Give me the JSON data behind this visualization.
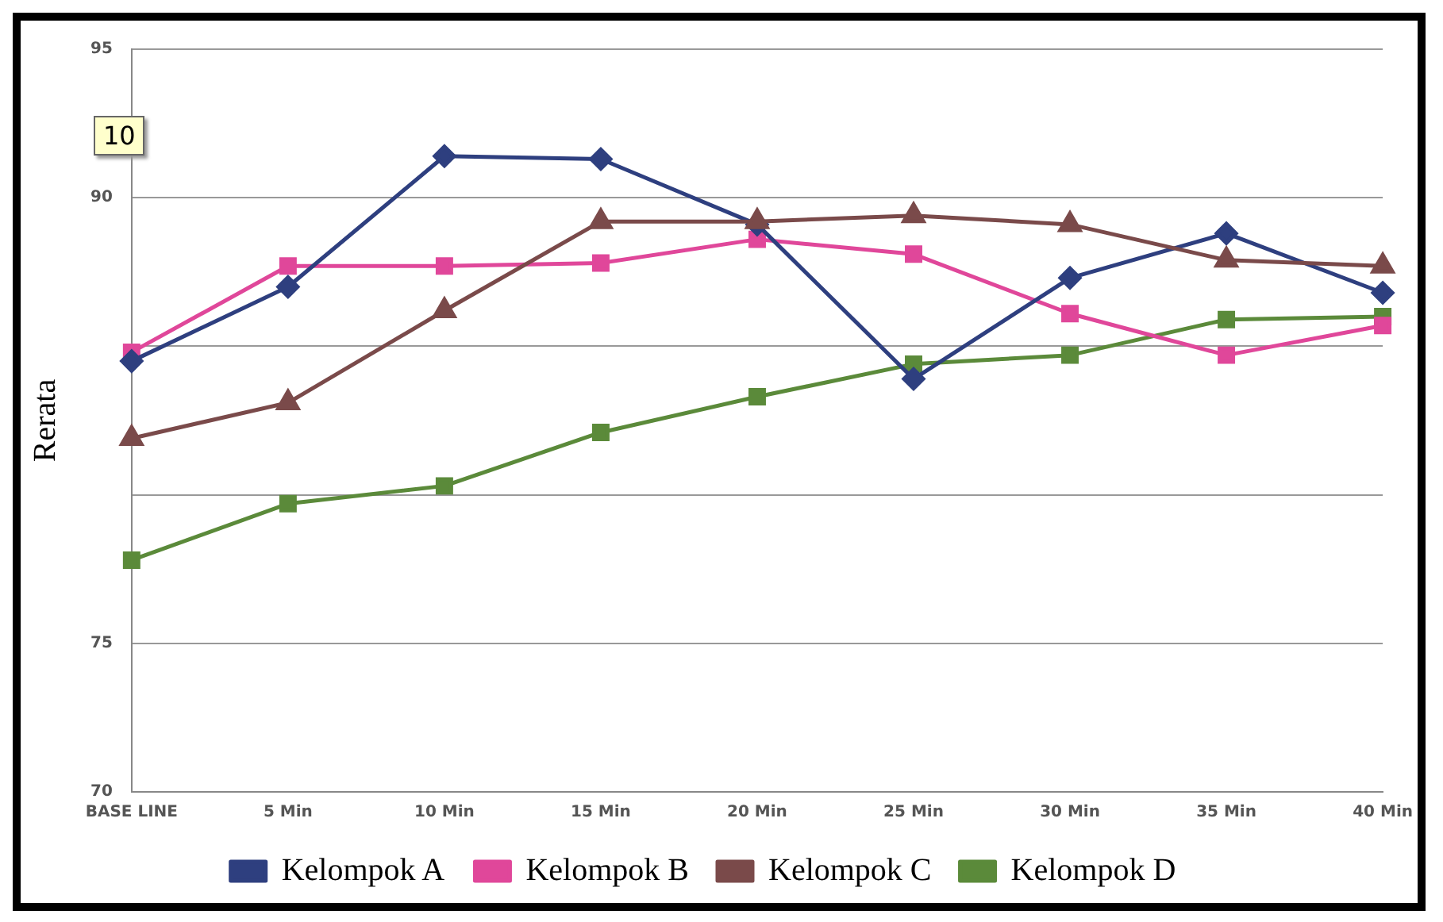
{
  "chart_data": {
    "type": "line",
    "ylabel": "Rerata",
    "annotations": [
      "10"
    ],
    "categories": [
      "BASE LINE",
      "5 Min",
      "10 Min",
      "15 Min",
      "20 Min",
      "25 Min",
      "30 Min",
      "35 Min",
      "40 Min"
    ],
    "series": [
      {
        "name": "Kelompok A",
        "color": "#2e3f7f",
        "marker": "diamond",
        "values": [
          84.5,
          87.0,
          91.4,
          91.3,
          89.1,
          83.9,
          87.3,
          88.8,
          86.8
        ]
      },
      {
        "name": "Kelompok B",
        "color": "#e0479a",
        "marker": "square",
        "values": [
          84.8,
          87.7,
          87.7,
          87.8,
          88.6,
          88.1,
          86.1,
          84.7,
          85.7
        ]
      },
      {
        "name": "Kelompok C",
        "color": "#7a4a4a",
        "marker": "triangle",
        "values": [
          81.9,
          83.1,
          86.2,
          89.2,
          89.2,
          89.4,
          89.1,
          87.9,
          87.7
        ]
      },
      {
        "name": "Kelompok D",
        "color": "#5b8a3a",
        "marker": "square",
        "values": [
          77.8,
          79.7,
          80.3,
          82.1,
          83.3,
          84.4,
          84.7,
          85.9,
          86.0
        ]
      }
    ],
    "ylim": [
      70,
      95
    ],
    "yticks": [
      70,
      75,
      {
        "value": 80,
        "label": null
      },
      {
        "value": 85,
        "label": null
      },
      90,
      95
    ],
    "grid": "y",
    "legend": "bottom",
    "line_style": "solid"
  }
}
